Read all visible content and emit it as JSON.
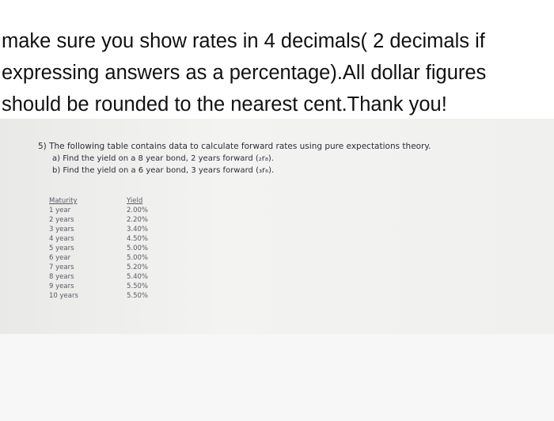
{
  "instructions": {
    "lines": [
      "make sure you show rates in 4 decimals( 2 decimals if",
      "expressing answers as a percentage).All dollar figures",
      "should be rounded to the nearest cent.Thank you!"
    ]
  },
  "question": {
    "intro": "5) The following table contains data to calculate forward rates using pure expectations theory.",
    "parts": [
      "a) Find the yield on a 8 year bond, 2 years forward (₂r₈).",
      "b) Find the yield on a 6 year bond, 3 years forward (₃r₆)."
    ]
  },
  "table": {
    "headers": [
      "Maturity",
      "Yield"
    ],
    "rows": [
      [
        "1 year",
        "2.00%"
      ],
      [
        "2 years",
        "2.20%"
      ],
      [
        "3 years",
        "3.40%"
      ],
      [
        "4 years",
        "4.50%"
      ],
      [
        "5 years",
        "5.00%"
      ],
      [
        "6 year",
        "5.00%"
      ],
      [
        "7 years",
        "5.20%"
      ],
      [
        "8 years",
        "5.40%"
      ],
      [
        "9 years",
        "5.50%"
      ],
      [
        "10 years",
        "5.50%"
      ]
    ]
  }
}
